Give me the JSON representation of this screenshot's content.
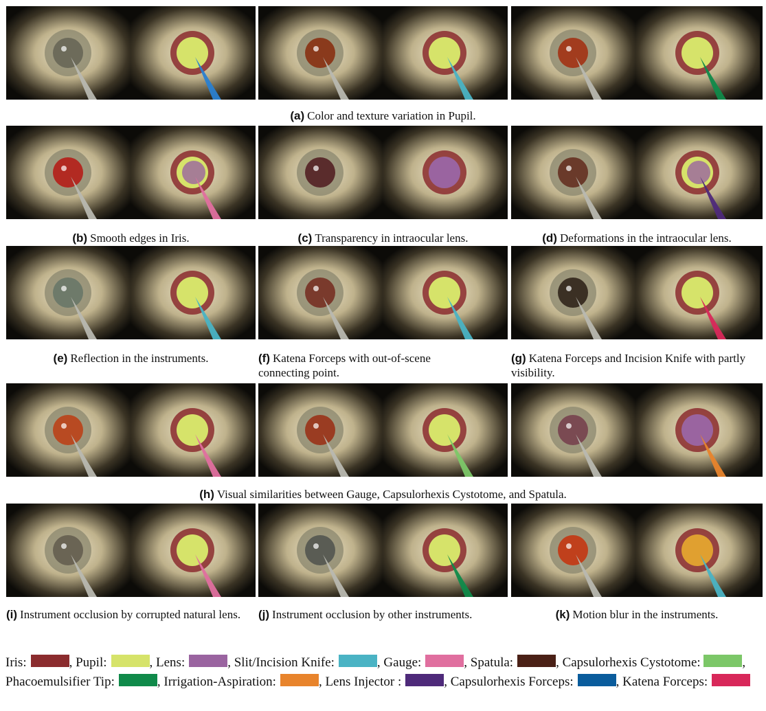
{
  "figure": {
    "captions": {
      "a": {
        "label": "(a)",
        "text": "Color and texture variation in Pupil."
      },
      "b": {
        "label": "(b)",
        "text": "Smooth edges in Iris."
      },
      "c": {
        "label": "(c)",
        "text": "Transparency in intraocular lens."
      },
      "d": {
        "label": "(d)",
        "text": "Deformations in the intraocular lens."
      },
      "e": {
        "label": "(e)",
        "text": "Reflection in the instruments."
      },
      "f": {
        "label": "(f)",
        "text": "Katena Forceps with out-of-scene connecting point."
      },
      "g": {
        "label": "(g)",
        "text": "Katena Forceps and Incision Knife with partly visibility."
      },
      "h": {
        "label": "(h)",
        "text": "Visual similarities between Gauge, Capsulorhexis Cystotome, and Spatula."
      },
      "i": {
        "label": "(i)",
        "text": "Instrument occlusion by corrupted natural lens."
      },
      "j": {
        "label": "(j)",
        "text": "Instrument occlusion by other instruments."
      },
      "k": {
        "label": "(k)",
        "text": "Motion blur in the instruments."
      }
    },
    "panels": [
      {
        "group": "a",
        "pupil": "#6d6b5a",
        "seg": [
          "pupil",
          "tool-gauge-blue"
        ]
      },
      {
        "group": "a",
        "pupil": "#8a3a1c",
        "seg": [
          "pupil",
          "tool-knife"
        ]
      },
      {
        "group": "a",
        "pupil": "#a23c1e",
        "seg": [
          "pupil",
          "tool-phaco"
        ]
      },
      {
        "group": "b",
        "pupil": "#b22a22",
        "seg": [
          "pupil-lens",
          "tool-gauge"
        ]
      },
      {
        "group": "c",
        "pupil": "#5a2c2c",
        "seg": [
          "lens"
        ]
      },
      {
        "group": "d",
        "pupil": "#6a3a2a",
        "seg": [
          "pupil-lens",
          "tool-lensinj"
        ]
      },
      {
        "group": "e",
        "pupil": "#6e7a6a",
        "seg": [
          "pupil",
          "tool-knife"
        ]
      },
      {
        "group": "f",
        "pupil": "#7a3a2c",
        "seg": [
          "pupil",
          "tool-knife"
        ]
      },
      {
        "group": "g",
        "pupil": "#3b3024",
        "seg": [
          "pupil",
          "tool-katena"
        ]
      },
      {
        "group": "h",
        "pupil": "#b84a22",
        "seg": [
          "pupil",
          "tool-spatula"
        ]
      },
      {
        "group": "h",
        "pupil": "#9a3c22",
        "seg": [
          "pupil",
          "tool-cysto"
        ]
      },
      {
        "group": "h",
        "pupil": "#7a4a52",
        "seg": [
          "lens",
          "tool-ia"
        ]
      },
      {
        "group": "i",
        "pupil": "#6a6454",
        "seg": [
          "pupil",
          "tool-gauge"
        ]
      },
      {
        "group": "j",
        "pupil": "#5a5c54",
        "seg": [
          "pupil",
          "tool-phaco"
        ]
      },
      {
        "group": "k",
        "pupil": "#c0401c",
        "seg": [
          "pupil-orange",
          "tool-knife"
        ]
      }
    ]
  },
  "legend": {
    "items": [
      {
        "label": "Iris:",
        "color": "#8b2c2e"
      },
      {
        "label": "Pupil:",
        "color": "#d6e36a"
      },
      {
        "label": "Lens:",
        "color": "#9a64a0"
      },
      {
        "label": "Slit/Incision Knife:",
        "color": "#4ab3c4"
      },
      {
        "label": "Gauge:",
        "color": "#e06f9f"
      },
      {
        "label": "Spatula:",
        "color": "#4a2016"
      },
      {
        "label": "Capsulorhexis Cystotome:",
        "color": "#7cc768"
      },
      {
        "label": "Phacoemulsifier Tip:",
        "color": "#108a4a"
      },
      {
        "label": "Irrigation-Aspiration:",
        "color": "#e8842c"
      },
      {
        "label": "Lens Injector :",
        "color": "#4e2a7a"
      },
      {
        "label": "Capsulorhexis Forceps:",
        "color": "#0a5c9c"
      },
      {
        "label": "Katena Forceps:",
        "color": "#d8285a"
      }
    ]
  }
}
